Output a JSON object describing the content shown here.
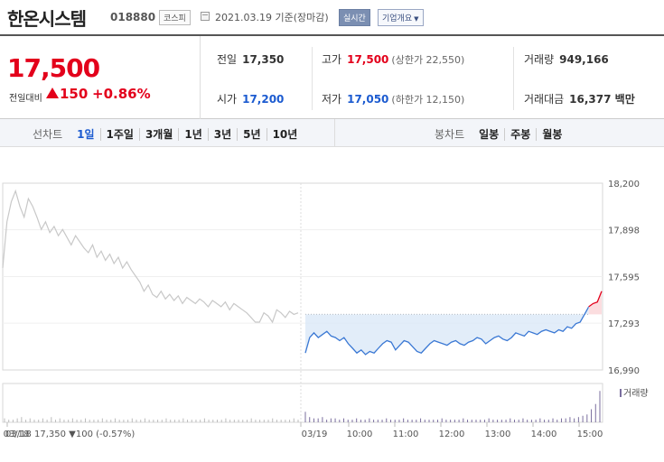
{
  "header": {
    "name": "한온시스템",
    "code": "018880",
    "market": "코스피",
    "date": "2021.03.19 기준(장마감)",
    "realtime": "실시간",
    "company_overview": "기업개요",
    "caret": "▼"
  },
  "quote": {
    "price": "17,500",
    "change_label": "전일대비",
    "change": "150",
    "change_pct": "+0.86%",
    "prev_close_label": "전일",
    "prev_close": "17,350",
    "high_label": "고가",
    "high": "17,500",
    "upper_limit": "(상한가 22,550)",
    "volume_label": "거래량",
    "volume": "949,166",
    "open_label": "시가",
    "open": "17,200",
    "low_label": "저가",
    "low": "17,050",
    "lower_limit": "(하한가 12,150)",
    "amount_label": "거래대금",
    "amount": "16,377 백만"
  },
  "tabs": {
    "line_label": "선차트",
    "line": [
      "1일",
      "1주일",
      "3개월",
      "1년",
      "3년",
      "5년",
      "10년"
    ],
    "candle_label": "봉차트",
    "candle": [
      "일봉",
      "주봉",
      "월봉"
    ]
  },
  "chart_data": {
    "type": "line",
    "colors": {
      "prev_day": "#c8c8c8",
      "down": "#3a78d4",
      "fill": "#dbe8f8",
      "up": "#e3001b",
      "baseline": "#9a9a9a",
      "volume": "#7a6e9e"
    },
    "y_ticks": [
      "18,200",
      "17,898",
      "17,595",
      "17,293",
      "16,990"
    ],
    "ylim": [
      16990,
      18200
    ],
    "reference_price": 17350,
    "x_ticks": [
      "03/18",
      "03/19",
      "10:00",
      "11:00",
      "12:00",
      "13:00",
      "14:00",
      "15:00"
    ],
    "prev_day_label": "03/18 17,350 ▼100 (-0.57%)",
    "volume_label": "거래량",
    "series": [
      {
        "segment": "03/18",
        "values": [
          17650,
          17950,
          18080,
          18150,
          18050,
          17980,
          18100,
          18050,
          17980,
          17900,
          17950,
          17880,
          17920,
          17860,
          17900,
          17850,
          17800,
          17860,
          17820,
          17780,
          17750,
          17800,
          17720,
          17760,
          17700,
          17740,
          17680,
          17720,
          17650,
          17690,
          17640,
          17600,
          17560,
          17500,
          17540,
          17480,
          17460,
          17500,
          17450,
          17480,
          17440,
          17470,
          17420,
          17460,
          17440,
          17420,
          17450,
          17430,
          17400,
          17440,
          17420,
          17400,
          17430,
          17380,
          17420,
          17400,
          17380,
          17360,
          17330,
          17300,
          17300,
          17360,
          17340,
          17300,
          17380,
          17360,
          17330,
          17370,
          17350,
          17360
        ]
      },
      {
        "segment": "03/19",
        "values": [
          17100,
          17200,
          17230,
          17200,
          17220,
          17240,
          17210,
          17200,
          17180,
          17200,
          17160,
          17130,
          17100,
          17120,
          17090,
          17110,
          17100,
          17130,
          17160,
          17180,
          17170,
          17120,
          17150,
          17180,
          17170,
          17140,
          17110,
          17100,
          17130,
          17160,
          17180,
          17170,
          17160,
          17150,
          17170,
          17180,
          17160,
          17150,
          17170,
          17180,
          17200,
          17190,
          17160,
          17180,
          17200,
          17210,
          17190,
          17180,
          17200,
          17230,
          17220,
          17210,
          17240,
          17230,
          17220,
          17240,
          17250,
          17240,
          17230,
          17250,
          17240,
          17270,
          17260,
          17290,
          17300,
          17350,
          17400,
          17420,
          17430,
          17500
        ]
      }
    ],
    "volume_values": {
      "03/18": [
        3,
        2,
        2,
        3,
        4,
        2,
        3,
        2,
        2,
        3,
        2,
        4,
        2,
        3,
        2,
        2,
        3,
        2,
        2,
        3,
        2,
        2,
        2,
        3,
        2,
        2,
        3,
        2,
        2,
        2,
        3,
        2,
        2,
        3,
        2,
        2,
        2,
        2,
        3,
        2,
        2,
        2,
        3,
        2,
        2,
        2,
        2,
        3,
        2,
        2,
        2,
        2,
        3,
        2,
        2,
        2,
        2,
        2,
        3,
        2,
        2,
        2,
        2,
        3,
        2,
        2,
        2,
        2,
        3,
        2
      ],
      "03/19": [
        8,
        4,
        3,
        3,
        4,
        2,
        3,
        3,
        2,
        3,
        2,
        2,
        3,
        2,
        2,
        3,
        2,
        2,
        2,
        3,
        2,
        2,
        2,
        3,
        2,
        2,
        2,
        3,
        2,
        2,
        2,
        2,
        3,
        2,
        2,
        2,
        2,
        3,
        2,
        2,
        2,
        2,
        2,
        3,
        2,
        2,
        2,
        2,
        3,
        2,
        2,
        3,
        2,
        2,
        2,
        3,
        2,
        2,
        3,
        2,
        3,
        3,
        4,
        3,
        4,
        5,
        6,
        10,
        14,
        24
      ]
    }
  }
}
